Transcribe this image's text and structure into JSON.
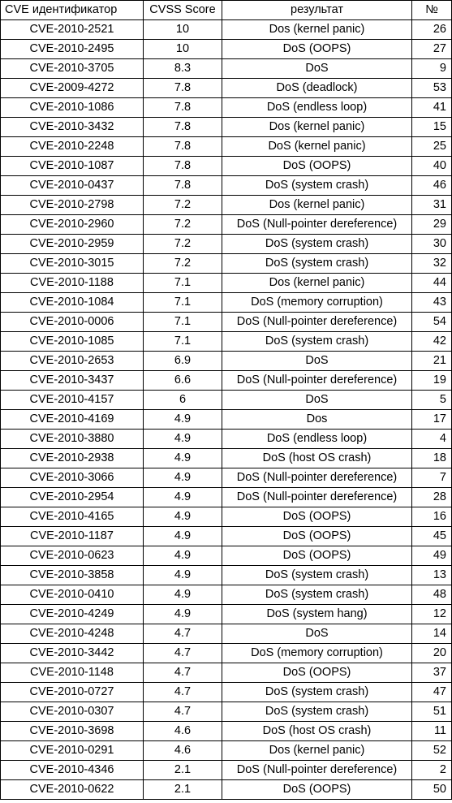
{
  "table": {
    "headers": [
      "CVE идентификатор",
      "CVSS Score",
      "результат",
      "№"
    ],
    "rows": [
      [
        "CVE-2010-2521",
        "10",
        "Dos (kernel panic)",
        "26"
      ],
      [
        "CVE-2010-2495",
        "10",
        "DoS (OOPS)",
        "27"
      ],
      [
        "CVE-2010-3705",
        "8.3",
        "DoS",
        "9"
      ],
      [
        "CVE-2009-4272",
        "7.8",
        "DoS (deadlock)",
        "53"
      ],
      [
        "CVE-2010-1086",
        "7.8",
        "DoS (endless loop)",
        "41"
      ],
      [
        "CVE-2010-3432",
        "7.8",
        "Dos (kernel panic)",
        "15"
      ],
      [
        "CVE-2010-2248",
        "7.8",
        "DoS (kernel panic)",
        "25"
      ],
      [
        "CVE-2010-1087",
        "7.8",
        "DoS (OOPS)",
        "40"
      ],
      [
        "CVE-2010-0437",
        "7.8",
        "DoS (system crash)",
        "46"
      ],
      [
        "CVE-2010-2798",
        "7.2",
        "Dos (kernel panic)",
        "31"
      ],
      [
        "CVE-2010-2960",
        "7.2",
        "DoS (Null-pointer dereference)",
        "29"
      ],
      [
        "CVE-2010-2959",
        "7.2",
        "DoS (system crash)",
        "30"
      ],
      [
        "CVE-2010-3015",
        "7.2",
        "DoS (system crash)",
        "32"
      ],
      [
        "CVE-2010-1188",
        "7.1",
        "Dos (kernel panic)",
        "44"
      ],
      [
        "CVE-2010-1084",
        "7.1",
        "DoS (memory corruption)",
        "43"
      ],
      [
        "CVE-2010-0006",
        "7.1",
        "DoS (Null-pointer dereference)",
        "54"
      ],
      [
        "CVE-2010-1085",
        "7.1",
        "DoS (system crash)",
        "42"
      ],
      [
        "CVE-2010-2653",
        "6.9",
        "DoS",
        "21"
      ],
      [
        "CVE-2010-3437",
        "6.6",
        "DoS (Null-pointer dereference)",
        "19"
      ],
      [
        "CVE-2010-4157",
        "6",
        "DoS",
        "5"
      ],
      [
        "CVE-2010-4169",
        "4.9",
        "Dos",
        "17"
      ],
      [
        "CVE-2010-3880",
        "4.9",
        "DoS (endless loop)",
        "4"
      ],
      [
        "CVE-2010-2938",
        "4.9",
        "DoS (host OS crash)",
        "18"
      ],
      [
        "CVE-2010-3066",
        "4.9",
        "DoS (Null-pointer dereference)",
        "7"
      ],
      [
        "CVE-2010-2954",
        "4.9",
        "DoS (Null-pointer dereference)",
        "28"
      ],
      [
        "CVE-2010-4165",
        "4.9",
        "DoS (OOPS)",
        "16"
      ],
      [
        "CVE-2010-1187",
        "4.9",
        "DoS (OOPS)",
        "45"
      ],
      [
        "CVE-2010-0623",
        "4.9",
        "DoS (OOPS)",
        "49"
      ],
      [
        "CVE-2010-3858",
        "4.9",
        "DoS (system crash)",
        "13"
      ],
      [
        "CVE-2010-0410",
        "4.9",
        "DoS (system crash)",
        "48"
      ],
      [
        "CVE-2010-4249",
        "4.9",
        "DoS (system hang)",
        "12"
      ],
      [
        "CVE-2010-4248",
        "4.7",
        "DoS",
        "14"
      ],
      [
        "CVE-2010-3442",
        "4.7",
        "DoS (memory corruption)",
        "20"
      ],
      [
        "CVE-2010-1148",
        "4.7",
        "DoS (OOPS)",
        "37"
      ],
      [
        "CVE-2010-0727",
        "4.7",
        "DoS (system crash)",
        "47"
      ],
      [
        "CVE-2010-0307",
        "4.7",
        "DoS (system crash)",
        "51"
      ],
      [
        "CVE-2010-3698",
        "4.6",
        "DoS (host OS crash)",
        "11"
      ],
      [
        "CVE-2010-0291",
        "4.6",
        "Dos (kernel panic)",
        "52"
      ],
      [
        "CVE-2010-4346",
        "2.1",
        "DoS (Null-pointer dereference)",
        "2"
      ],
      [
        "CVE-2010-0622",
        "2.1",
        "DoS (OOPS)",
        "50"
      ]
    ]
  }
}
